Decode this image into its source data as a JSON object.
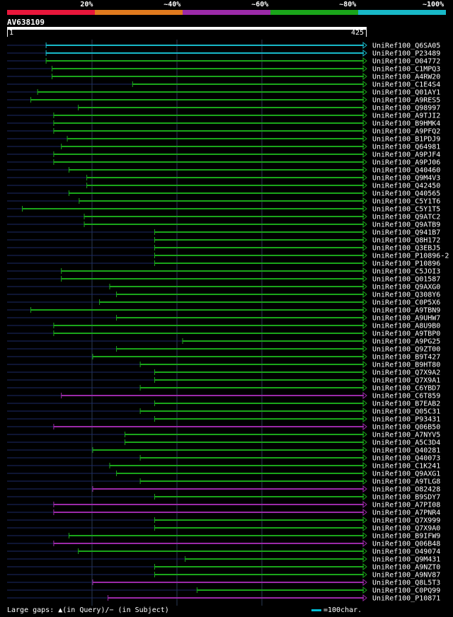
{
  "legend": {
    "labels": [
      "20%",
      "~40%",
      "~60%",
      "~80%",
      "~100%"
    ],
    "colors": [
      "#e8173b",
      "#e07a1e",
      "#9b2aa8",
      "#1aa51a",
      "#18b8c8"
    ]
  },
  "query": {
    "id": "AV638109",
    "ruler_start": "1",
    "ruler_end": "425"
  },
  "footer": {
    "gaps_text": "Large gaps: ▲(in Query)/− (in Subject)",
    "scale_text": "=100char."
  },
  "chart_data": {
    "type": "alignment",
    "x_range": [
      1,
      425
    ],
    "colors": {
      "purple": "#9b2aa8",
      "green": "#1aa51a",
      "cyan": "#18b8c8"
    },
    "hits": [
      {
        "name": "UniRef100_Q6SA05",
        "start": 47,
        "end": 425,
        "color": "cyan"
      },
      {
        "name": "UniRef100_P23489",
        "start": 47,
        "end": 425,
        "color": "cyan"
      },
      {
        "name": "UniRef100_O04772",
        "start": 47,
        "end": 425,
        "color": "green"
      },
      {
        "name": "UniRef100_C1MPQ3",
        "start": 54,
        "end": 425,
        "color": "green"
      },
      {
        "name": "UniRef100_A4RW20",
        "start": 54,
        "end": 425,
        "color": "green"
      },
      {
        "name": "UniRef100_C1E4S4",
        "start": 149,
        "end": 425,
        "color": "green"
      },
      {
        "name": "UniRef100_Q01AY1",
        "start": 37,
        "end": 425,
        "color": "green"
      },
      {
        "name": "UniRef100_A9RES5",
        "start": 29,
        "end": 425,
        "color": "green"
      },
      {
        "name": "UniRef100_Q98997",
        "start": 85,
        "end": 425,
        "color": "green"
      },
      {
        "name": "UniRef100_A9TJI2",
        "start": 56,
        "end": 425,
        "color": "green"
      },
      {
        "name": "UniRef100_B9HMK4",
        "start": 56,
        "end": 425,
        "color": "green"
      },
      {
        "name": "UniRef100_A9PFQ2",
        "start": 56,
        "end": 425,
        "color": "green"
      },
      {
        "name": "UniRef100_B1PDJ9",
        "start": 72,
        "end": 425,
        "color": "green"
      },
      {
        "name": "UniRef100_Q64981",
        "start": 65,
        "end": 425,
        "color": "green"
      },
      {
        "name": "UniRef100_A9PJF4",
        "start": 56,
        "end": 425,
        "color": "green"
      },
      {
        "name": "UniRef100_A9PJ06",
        "start": 56,
        "end": 425,
        "color": "green"
      },
      {
        "name": "UniRef100_Q40460",
        "start": 74,
        "end": 425,
        "color": "green"
      },
      {
        "name": "UniRef100_Q9M4V3",
        "start": 95,
        "end": 425,
        "color": "green"
      },
      {
        "name": "UniRef100_Q42450",
        "start": 95,
        "end": 425,
        "color": "green"
      },
      {
        "name": "UniRef100_Q40565",
        "start": 74,
        "end": 425,
        "color": "green"
      },
      {
        "name": "UniRef100_C5Y1T6",
        "start": 86,
        "end": 425,
        "color": "green"
      },
      {
        "name": "UniRef100_C5Y1T5",
        "start": 19,
        "end": 425,
        "color": "green"
      },
      {
        "name": "UniRef100_Q9ATC2",
        "start": 92,
        "end": 425,
        "color": "green"
      },
      {
        "name": "UniRef100_Q9ATB9",
        "start": 92,
        "end": 425,
        "color": "green"
      },
      {
        "name": "UniRef100_Q941B7",
        "start": 175,
        "end": 425,
        "color": "green"
      },
      {
        "name": "UniRef100_Q8H172",
        "start": 175,
        "end": 425,
        "color": "green"
      },
      {
        "name": "UniRef100_Q3EBJ5",
        "start": 175,
        "end": 425,
        "color": "green"
      },
      {
        "name": "UniRef100_P10896-2",
        "start": 175,
        "end": 425,
        "color": "green"
      },
      {
        "name": "UniRef100_P10896",
        "start": 175,
        "end": 425,
        "color": "green"
      },
      {
        "name": "UniRef100_C5JOI3",
        "start": 65,
        "end": 425,
        "color": "green"
      },
      {
        "name": "UniRef100_Q01587",
        "start": 65,
        "end": 425,
        "color": "green"
      },
      {
        "name": "UniRef100_Q9AXG0",
        "start": 122,
        "end": 425,
        "color": "green"
      },
      {
        "name": "UniRef100_Q308Y6",
        "start": 130,
        "end": 425,
        "color": "green"
      },
      {
        "name": "UniRef100_C0P5X6",
        "start": 110,
        "end": 425,
        "color": "green"
      },
      {
        "name": "UniRef100_A9TBN9",
        "start": 29,
        "end": 425,
        "color": "green"
      },
      {
        "name": "UniRef100_A9UHW7",
        "start": 130,
        "end": 425,
        "color": "green"
      },
      {
        "name": "UniRef100_A8U9B0",
        "start": 56,
        "end": 425,
        "color": "green"
      },
      {
        "name": "UniRef100_A9TBP0",
        "start": 56,
        "end": 425,
        "color": "green"
      },
      {
        "name": "UniRef100_A9PG25",
        "start": 208,
        "end": 425,
        "color": "green"
      },
      {
        "name": "UniRef100_Q9ZT00",
        "start": 130,
        "end": 425,
        "color": "green"
      },
      {
        "name": "UniRef100_B9T427",
        "start": 102,
        "end": 425,
        "color": "green"
      },
      {
        "name": "UniRef100_B9HT80",
        "start": 158,
        "end": 425,
        "color": "green"
      },
      {
        "name": "UniRef100_Q7X9A2",
        "start": 175,
        "end": 425,
        "color": "green"
      },
      {
        "name": "UniRef100_Q7X9A1",
        "start": 175,
        "end": 425,
        "color": "green"
      },
      {
        "name": "UniRef100_C6YBD7",
        "start": 158,
        "end": 425,
        "color": "green"
      },
      {
        "name": "UniRef100_C6T859",
        "start": 65,
        "end": 425,
        "color": "purple"
      },
      {
        "name": "UniRef100_B7EAB2",
        "start": 175,
        "end": 425,
        "color": "green"
      },
      {
        "name": "UniRef100_Q05C31",
        "start": 158,
        "end": 425,
        "color": "green"
      },
      {
        "name": "UniRef100_P93431",
        "start": 175,
        "end": 425,
        "color": "green"
      },
      {
        "name": "UniRef100_Q06B50",
        "start": 56,
        "end": 425,
        "color": "purple"
      },
      {
        "name": "UniRef100_A7NYV5",
        "start": 140,
        "end": 425,
        "color": "green"
      },
      {
        "name": "UniRef100_A5C3D4",
        "start": 140,
        "end": 425,
        "color": "green"
      },
      {
        "name": "UniRef100_Q40281",
        "start": 102,
        "end": 425,
        "color": "green"
      },
      {
        "name": "UniRef100_Q40073",
        "start": 158,
        "end": 425,
        "color": "green"
      },
      {
        "name": "UniRef100_C1K241",
        "start": 122,
        "end": 425,
        "color": "green"
      },
      {
        "name": "UniRef100_Q9AXG1",
        "start": 130,
        "end": 425,
        "color": "green"
      },
      {
        "name": "UniRef100_A9TLG8",
        "start": 158,
        "end": 425,
        "color": "green"
      },
      {
        "name": "UniRef100_O82428",
        "start": 102,
        "end": 425,
        "color": "purple"
      },
      {
        "name": "UniRef100_B9SDY7",
        "start": 175,
        "end": 425,
        "color": "green"
      },
      {
        "name": "UniRef100_A7PI08",
        "start": 56,
        "end": 425,
        "color": "purple"
      },
      {
        "name": "UniRef100_A7PNR4",
        "start": 56,
        "end": 425,
        "color": "purple"
      },
      {
        "name": "UniRef100_Q7X999",
        "start": 175,
        "end": 425,
        "color": "green"
      },
      {
        "name": "UniRef100_Q7X9A0",
        "start": 175,
        "end": 425,
        "color": "green"
      },
      {
        "name": "UniRef100_B9IFW9",
        "start": 74,
        "end": 425,
        "color": "green"
      },
      {
        "name": "UniRef100_Q06B48",
        "start": 56,
        "end": 425,
        "color": "purple"
      },
      {
        "name": "UniRef100_O49074",
        "start": 85,
        "end": 425,
        "color": "green"
      },
      {
        "name": "UniRef100_Q9M431",
        "start": 211,
        "end": 425,
        "color": "green"
      },
      {
        "name": "UniRef100_A9NZT0",
        "start": 175,
        "end": 425,
        "color": "green"
      },
      {
        "name": "UniRef100_A9NV87",
        "start": 175,
        "end": 425,
        "color": "green"
      },
      {
        "name": "UniRef100_Q8L5T3",
        "start": 102,
        "end": 425,
        "color": "purple"
      },
      {
        "name": "UniRef100_C0PQ99",
        "start": 225,
        "end": 425,
        "color": "green"
      },
      {
        "name": "UniRef100_P10871",
        "start": 120,
        "end": 425,
        "color": "purple"
      }
    ]
  }
}
